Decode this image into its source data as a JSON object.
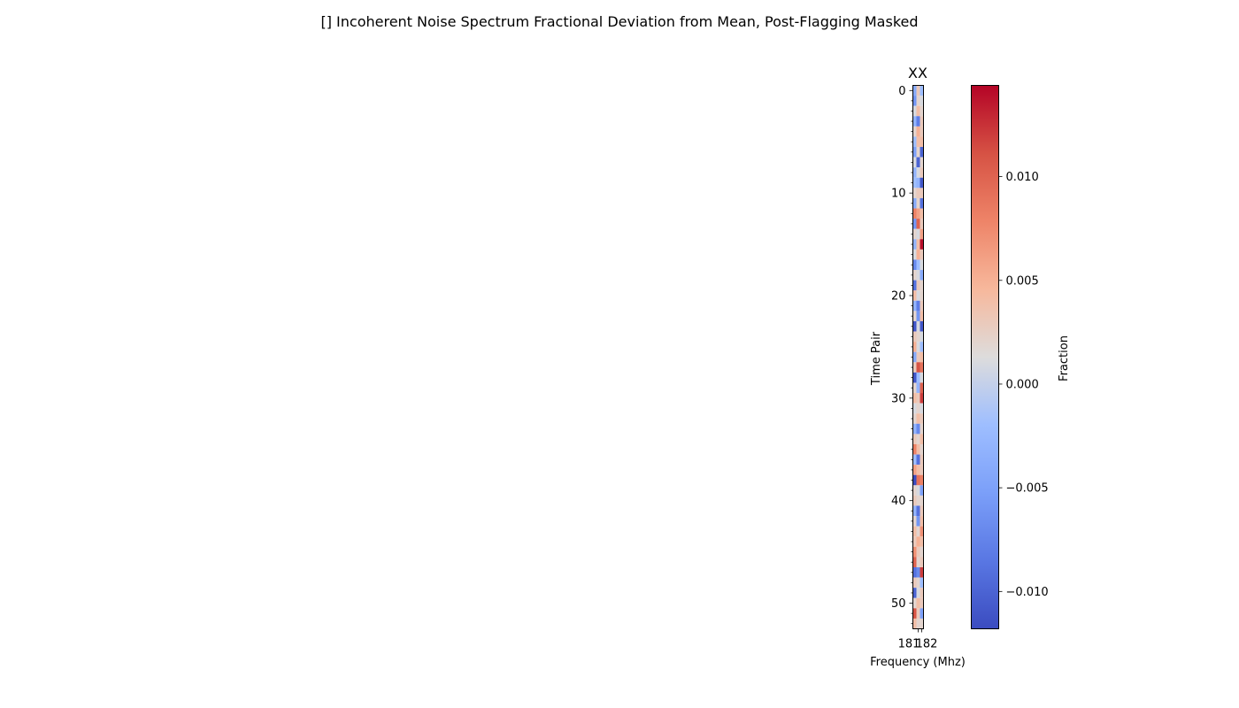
{
  "chart_data": {
    "type": "heatmap",
    "title": "[] Incoherent Noise Spectrum Fractional Deviation from Mean, Post-Flagging Masked",
    "panel_title": "XX",
    "xlabel": "Frequency (Mhz)",
    "ylabel": "Time Pair",
    "x_ticks": [
      "181",
      "182"
    ],
    "y_ticks": [
      0,
      10,
      20,
      30,
      40,
      50
    ],
    "n_rows": 53,
    "n_cols": 3,
    "colorbar": {
      "label": "Fraction",
      "vmin": -0.0118,
      "vmax": 0.0144,
      "ticks": [
        -0.01,
        -0.005,
        0.0,
        0.005,
        0.01
      ],
      "tick_labels": [
        "−0.010",
        "−0.005",
        "0.000",
        "0.005",
        "0.010"
      ],
      "colormap": "coolwarm"
    },
    "values": [
      [
        -0.004,
        0.003,
        -0.002
      ],
      [
        -0.006,
        0.002,
        0.001
      ],
      [
        0.001,
        0.004,
        0.002
      ],
      [
        -0.003,
        -0.008,
        0.003
      ],
      [
        0.002,
        0.005,
        0.003
      ],
      [
        -0.002,
        0.004,
        0.004
      ],
      [
        -0.005,
        0.002,
        -0.01
      ],
      [
        0.001,
        -0.01,
        0.002
      ],
      [
        -0.003,
        0.001,
        0.003
      ],
      [
        -0.002,
        -0.003,
        -0.011
      ],
      [
        0.002,
        0.003,
        0.003
      ],
      [
        -0.004,
        0.002,
        -0.009
      ],
      [
        0.008,
        0.006,
        0.004
      ],
      [
        -0.006,
        0.01,
        0.003
      ],
      [
        0.002,
        0.001,
        0.006
      ],
      [
        -0.003,
        0.004,
        0.014
      ],
      [
        0.001,
        0.005,
        0.003
      ],
      [
        -0.007,
        -0.002,
        0.001
      ],
      [
        0.002,
        0.001,
        -0.004
      ],
      [
        -0.009,
        0.003,
        0.002
      ],
      [
        0.004,
        0.001,
        0.002
      ],
      [
        -0.003,
        -0.008,
        0.003
      ],
      [
        0.002,
        -0.006,
        0.004
      ],
      [
        -0.011,
        0.001,
        -0.011
      ],
      [
        0.003,
        0.002,
        0.001
      ],
      [
        0.005,
        0.001,
        -0.002
      ],
      [
        -0.004,
        0.003,
        0.004
      ],
      [
        0.003,
        0.011,
        0.009
      ],
      [
        -0.011,
        -0.002,
        0.001
      ],
      [
        0.002,
        -0.003,
        0.01
      ],
      [
        0.004,
        0.003,
        0.012
      ],
      [
        0.001,
        0.002,
        0.001
      ],
      [
        0.002,
        0.004,
        0.003
      ],
      [
        -0.003,
        -0.007,
        0.002
      ],
      [
        0.003,
        0.002,
        0.004
      ],
      [
        0.008,
        0.004,
        0.002
      ],
      [
        -0.002,
        -0.009,
        0.003
      ],
      [
        0.006,
        0.004,
        0.003
      ],
      [
        -0.012,
        0.009,
        0.008
      ],
      [
        0.002,
        0.001,
        -0.005
      ],
      [
        0.003,
        0.002,
        0.002
      ],
      [
        -0.003,
        -0.009,
        0.003
      ],
      [
        0.002,
        -0.006,
        0.004
      ],
      [
        0.004,
        0.002,
        0.007
      ],
      [
        0.003,
        0.005,
        0.004
      ],
      [
        0.007,
        0.003,
        0.002
      ],
      [
        0.01,
        0.002,
        0.003
      ],
      [
        -0.009,
        -0.007,
        0.012
      ],
      [
        0.003,
        0.002,
        -0.002
      ],
      [
        -0.01,
        0.001,
        0.003
      ],
      [
        0.002,
        0.004,
        0.003
      ],
      [
        0.011,
        0.003,
        -0.005
      ],
      [
        0.004,
        0.002,
        0.002
      ]
    ]
  }
}
